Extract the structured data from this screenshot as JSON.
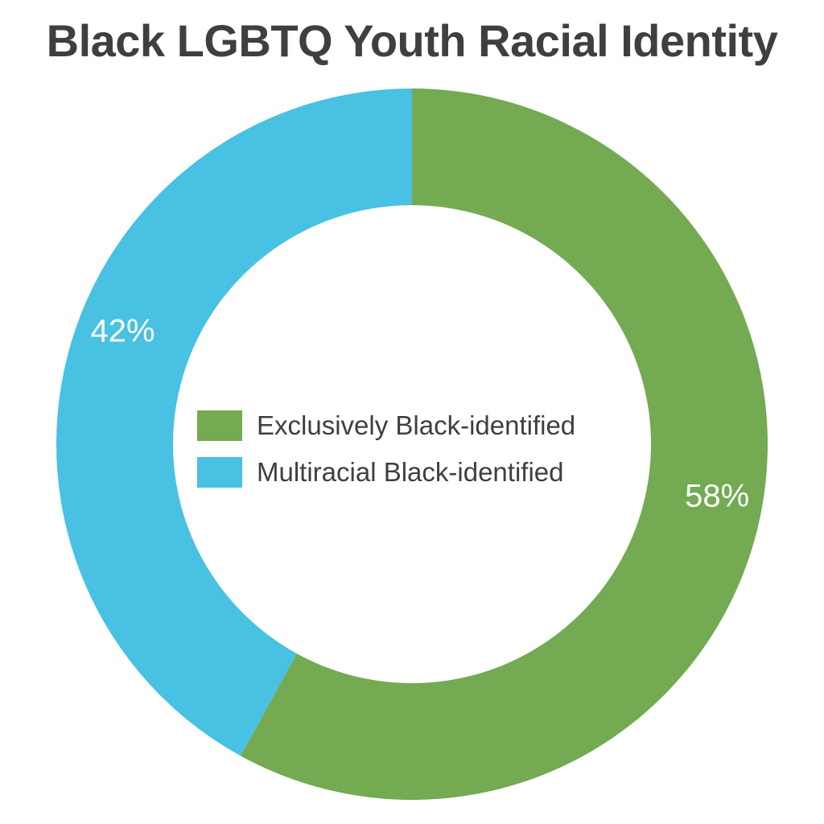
{
  "chart_data": {
    "type": "pie",
    "title": "Black LGBTQ Youth Racial Identity",
    "categories": [
      "Exclusively Black-identified",
      "Multiracial Black-identified"
    ],
    "values": [
      58,
      42
    ],
    "labels": [
      "58%",
      "42%"
    ],
    "colors": [
      "#73aa52",
      "#48c1e2"
    ],
    "donut": true,
    "start_angle_deg": 0,
    "direction": "clockwise",
    "legend": {
      "position": "center",
      "items": [
        {
          "label": "Exclusively Black-identified",
          "color": "#73aa52"
        },
        {
          "label": "Multiracial Black-identified",
          "color": "#48c1e2"
        }
      ]
    }
  }
}
